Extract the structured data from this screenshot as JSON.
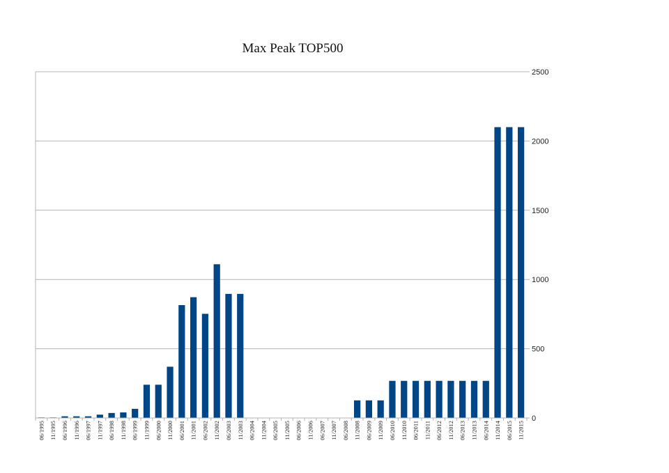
{
  "chart_data": {
    "type": "bar",
    "title": "Max Peak TOP500",
    "xlabel": "",
    "ylabel": "",
    "ylim": [
      0,
      2500
    ],
    "yticks": [
      0,
      500,
      1000,
      1500,
      2000,
      2500
    ],
    "y_axis_side": "right",
    "grid": true,
    "bar_color": "#004586",
    "categories": [
      "06/1995",
      "11/1995",
      "06/1996",
      "11/1996",
      "06/1997",
      "11/1997",
      "06/1998",
      "11/1998",
      "06/1999",
      "11/1999",
      "06/2000",
      "11/2000",
      "06/2001",
      "11/2001",
      "06/2002",
      "11/2002",
      "06/2003",
      "11/2003",
      "06/2004",
      "11/2004",
      "06/2005",
      "11/2005",
      "06/2006",
      "11/2006",
      "06/2007",
      "11/2007",
      "06/2008",
      "11/2008",
      "06/2009",
      "11/2009",
      "06/2010",
      "11/2010",
      "06/2011",
      "11/2011",
      "06/2012",
      "11/2012",
      "06/2013",
      "11/2013",
      "06/2014",
      "11/2014",
      "06/2015",
      "11/2015"
    ],
    "values": [
      4,
      4,
      12,
      12,
      12,
      24,
      36,
      40,
      66,
      240,
      240,
      370,
      815,
      872,
      752,
      1110,
      896,
      896,
      0,
      0,
      0,
      0,
      0,
      0,
      0,
      0,
      0,
      127,
      127,
      127,
      268,
      268,
      268,
      268,
      268,
      268,
      268,
      268,
      268,
      2100,
      2100,
      2100
    ]
  }
}
